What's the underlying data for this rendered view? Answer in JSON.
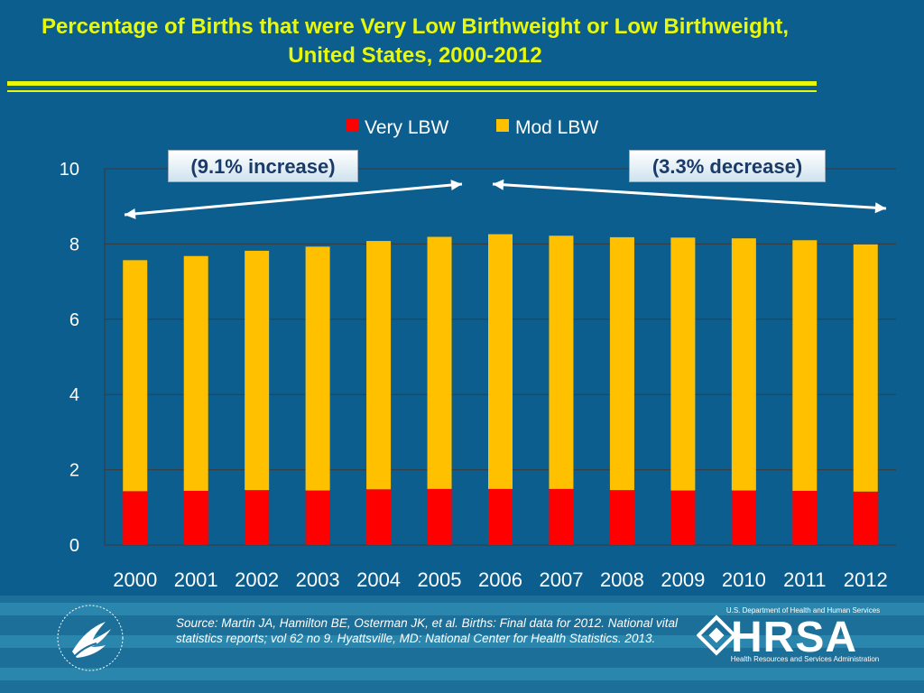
{
  "title": "Percentage of Births that were Very Low Birthweight or Low Birthweight, United States, 2000-2012",
  "callouts": {
    "left": "(9.1% increase)",
    "right": "(3.3% decrease)"
  },
  "source": "Source: Martin JA, Hamilton BE, Osterman JK, et al. Births: Final data for 2012. National vital statistics reports; vol 62 no 9. Hyattsville, MD: National Center for Health Statistics. 2013.",
  "logo": {
    "hrsa_top": "U.S. Department of Health and Human Services",
    "hrsa_word": "HRSA",
    "hrsa_bottom": "Health Resources and Services Administration"
  },
  "colors": {
    "background": "#0b5e8e",
    "title": "#e8f80b",
    "very_lbw": "#ff0000",
    "mod_lbw": "#ffc000"
  },
  "chart_data": {
    "type": "bar",
    "stacked": true,
    "categories": [
      "2000",
      "2001",
      "2002",
      "2003",
      "2004",
      "2005",
      "2006",
      "2007",
      "2008",
      "2009",
      "2010",
      "2011",
      "2012"
    ],
    "series": [
      {
        "name": "Very LBW",
        "color": "#ff0000",
        "values": [
          1.43,
          1.44,
          1.46,
          1.45,
          1.48,
          1.49,
          1.49,
          1.49,
          1.46,
          1.45,
          1.45,
          1.44,
          1.42
        ]
      },
      {
        "name": "Mod LBW",
        "color": "#ffc000",
        "values": [
          6.14,
          6.24,
          6.36,
          6.48,
          6.6,
          6.7,
          6.77,
          6.73,
          6.72,
          6.72,
          6.7,
          6.66,
          6.57
        ]
      }
    ],
    "ylim": [
      0,
      10
    ],
    "yticks": [
      0,
      2,
      4,
      6,
      8,
      10
    ],
    "grid": true,
    "legend": "top"
  }
}
